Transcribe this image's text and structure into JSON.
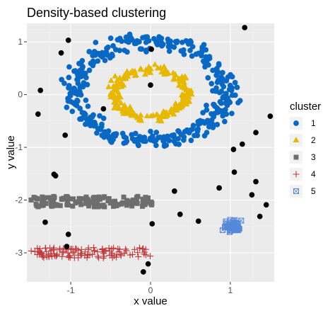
{
  "chart_data": {
    "type": "scatter",
    "title": "Density-based clustering",
    "xlabel": "x value",
    "ylabel": "y value",
    "xlim": [
      -1.55,
      1.55
    ],
    "ylim": [
      -3.55,
      1.35
    ],
    "xticks": [
      -1,
      0,
      1
    ],
    "xtick_labels": [
      "-1",
      "0",
      "1"
    ],
    "yticks": [
      1,
      0,
      -1,
      -2,
      -3
    ],
    "ytick_labels": [
      "1",
      "0",
      "-1",
      "-2",
      "-3"
    ],
    "grid": true,
    "background": "#ebebeb",
    "legend": {
      "title": "cluster",
      "position": "right"
    },
    "series": [
      {
        "name": "1",
        "marker": "circle",
        "color": "#0868c4",
        "shape": {
          "kind": "ring",
          "cx": 0,
          "cy": 0.05,
          "r": 0.95,
          "jitter": 0.08,
          "count": 380
        }
      },
      {
        "name": "2",
        "marker": "triangle",
        "color": "#e7b800",
        "shape": {
          "kind": "ring",
          "cx": 0,
          "cy": 0.02,
          "r": 0.45,
          "jitter": 0.04,
          "count": 200
        }
      },
      {
        "name": "3",
        "marker": "square",
        "color": "#6e6e6e",
        "shape": {
          "kind": "band",
          "xmin": -1.5,
          "xmax": 0.05,
          "ycenter": -2.03,
          "amp": 0.1,
          "count": 120
        }
      },
      {
        "name": "4",
        "marker": "plus",
        "color": "#c1393b",
        "shape": {
          "kind": "band",
          "xmin": -1.5,
          "xmax": 0.0,
          "ycenter": -3.0,
          "amp": 0.1,
          "count": 120
        }
      },
      {
        "name": "5",
        "marker": "boxcross",
        "color": "#5588d8",
        "shape": {
          "kind": "blob",
          "cx": 1.03,
          "cy": -2.5,
          "rx": 0.12,
          "ry": 0.12,
          "count": 60
        }
      }
    ],
    "noise": {
      "marker": "circle",
      "color": "#000000",
      "points": [
        [
          -1.03,
          1.03
        ],
        [
          -1.12,
          0.79
        ],
        [
          -1.38,
          0.08
        ],
        [
          -1.41,
          -0.37
        ],
        [
          -1.07,
          -0.77
        ],
        [
          0.01,
          0.86
        ],
        [
          0.0,
          0.18
        ],
        [
          -0.59,
          -0.27
        ],
        [
          1.18,
          1.27
        ],
        [
          1.5,
          -0.41
        ],
        [
          1.32,
          -0.72
        ],
        [
          1.15,
          -0.94
        ],
        [
          1.04,
          -1.04
        ],
        [
          1.05,
          -1.47
        ],
        [
          1.32,
          -1.65
        ],
        [
          1.27,
          -1.9
        ],
        [
          1.45,
          -2.09
        ],
        [
          1.37,
          -2.31
        ],
        [
          0.86,
          -1.77
        ],
        [
          0.3,
          -1.83
        ],
        [
          0.37,
          -2.27
        ],
        [
          0.6,
          -2.4
        ],
        [
          -1.21,
          -1.51
        ],
        [
          -1.19,
          -1.54
        ],
        [
          -1.32,
          -2.42
        ],
        [
          -1.03,
          -2.65
        ],
        [
          -1.05,
          -2.88
        ],
        [
          -0.03,
          -3.21
        ],
        [
          -0.09,
          -3.36
        ],
        [
          0.02,
          -2.45
        ]
      ]
    }
  }
}
